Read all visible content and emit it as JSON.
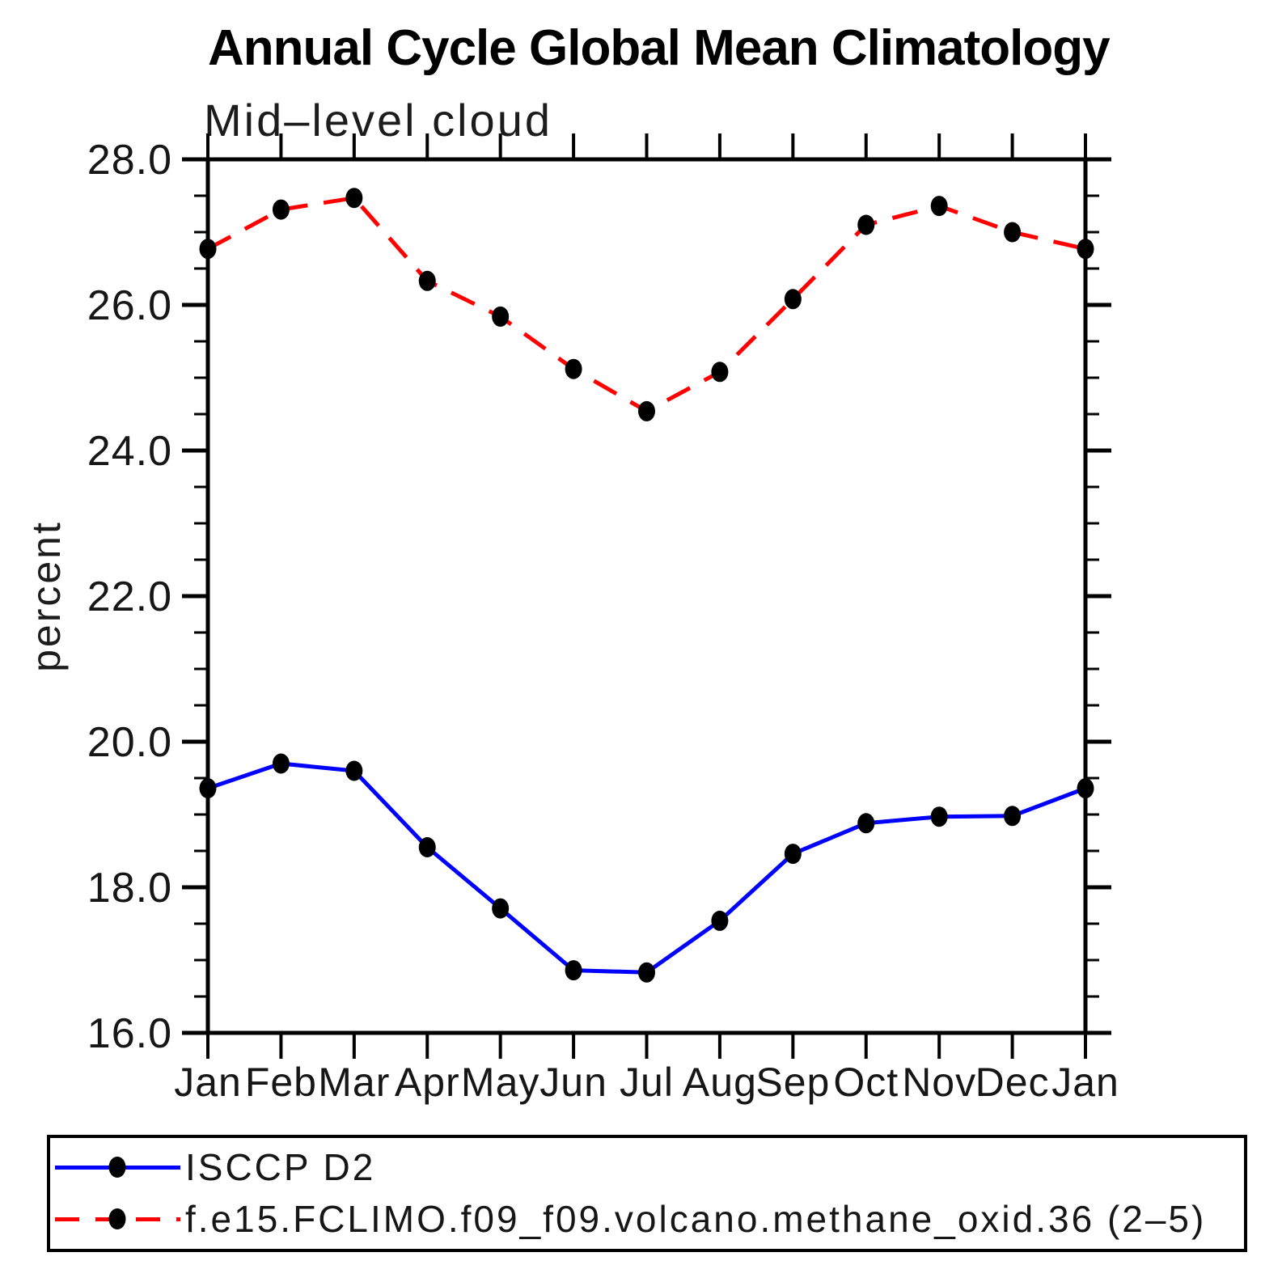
{
  "title": "Annual Cycle Global Mean Climatology",
  "subtitle": "Mid–level cloud",
  "chart_data": {
    "type": "line",
    "x_categories": [
      "Jan",
      "Feb",
      "Mar",
      "Apr",
      "May",
      "Jun",
      "Jul",
      "Aug",
      "Sep",
      "Oct",
      "Nov",
      "Dec",
      "Jan"
    ],
    "ylabel": "percent",
    "ylim": [
      16.0,
      28.0
    ],
    "ytick_values": [
      16,
      18,
      20,
      22,
      24,
      26,
      28
    ],
    "ytick_labels": [
      "16.0",
      "18.0",
      "20.0",
      "22.0",
      "24.0",
      "26.0",
      "28.0"
    ],
    "y_minor_step": 0.5,
    "grid": false,
    "legend_position": "bottom-left",
    "series": [
      {
        "name": "ISCCP D2",
        "color": "#0000ff",
        "line_style": "solid",
        "marker": "filled-circle",
        "marker_color": "#000000",
        "values": [
          19.36,
          19.7,
          19.6,
          18.55,
          17.71,
          16.86,
          16.83,
          17.54,
          18.46,
          18.88,
          18.97,
          18.98,
          19.36
        ]
      },
      {
        "name": "f.e15.FCLIMO.f09_f09.volcano.methane_oxid.36 (2–5)",
        "color": "#ff0000",
        "line_style": "dashed",
        "marker": "filled-circle",
        "marker_color": "#000000",
        "values": [
          26.77,
          27.31,
          27.47,
          26.33,
          25.84,
          25.12,
          24.54,
          25.08,
          26.08,
          27.1,
          27.36,
          27.0,
          26.77
        ]
      }
    ]
  }
}
